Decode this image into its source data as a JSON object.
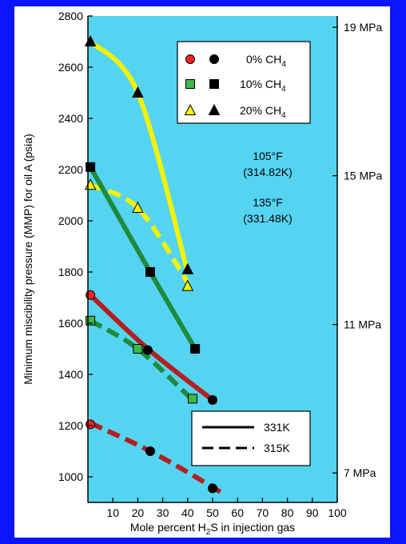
{
  "chart_data": {
    "type": "line",
    "title": "",
    "xlabel": "Mole percent H2S in injection gas",
    "xlabel_parts": [
      "Mole percent H",
      "2",
      "S in injection gas"
    ],
    "ylabel": "Minimum miscibility pressure (MMP) for oil A (psia)",
    "xlim": [
      0,
      100
    ],
    "ylim": [
      900,
      2800
    ],
    "x_ticks": [
      10,
      20,
      30,
      40,
      50,
      60,
      70,
      80,
      90,
      100
    ],
    "y_ticks": [
      1000,
      1200,
      1400,
      1600,
      1800,
      2000,
      2200,
      2400,
      2600,
      2800
    ],
    "y2_ticks": [
      {
        "label": "7 MPa",
        "psia": 1015
      },
      {
        "label": "11 MPa",
        "psia": 1595
      },
      {
        "label": "15 MPa",
        "psia": 2176
      },
      {
        "label": "19 MPa",
        "psia": 2756
      }
    ],
    "grid": false,
    "legend": {
      "position": "top-right",
      "entries": [
        {
          "label": "0% CH",
          "sub": "4",
          "marker": "circle",
          "open_color": "#ff2020"
        },
        {
          "label": "10% CH",
          "sub": "4",
          "marker": "square",
          "open_color": "#3db84a"
        },
        {
          "label": "20% CH",
          "sub": "4",
          "marker": "triangle",
          "open_color": "#f4f200"
        }
      ]
    },
    "line_legend": {
      "position": "bottom-right",
      "entries": [
        {
          "label": "331K",
          "style": "solid"
        },
        {
          "label": "315K",
          "style": "dashed"
        }
      ]
    },
    "annotations": [
      "105°F",
      "(314.82K)",
      "135°F",
      "(331.48K)"
    ],
    "curves": [
      {
        "group": "20% CH4",
        "style": "solid",
        "color": "#f4f200",
        "points": [
          [
            1,
            2700
          ],
          [
            20,
            2500
          ],
          [
            40,
            1800
          ]
        ]
      },
      {
        "group": "20% CH4",
        "style": "dashed",
        "color": "#f4f200",
        "points": [
          [
            1,
            2140
          ],
          [
            20,
            2050
          ],
          [
            40,
            1760
          ]
        ]
      },
      {
        "group": "10% CH4",
        "style": "solid",
        "color": "#1e8a3c",
        "points": [
          [
            1,
            2210
          ],
          [
            25,
            1800
          ],
          [
            43,
            1500
          ]
        ]
      },
      {
        "group": "10% CH4",
        "style": "dashed",
        "color": "#1e8a3c",
        "points": [
          [
            1,
            1610
          ],
          [
            20,
            1500
          ],
          [
            42,
            1300
          ]
        ]
      },
      {
        "group": "0% CH4",
        "style": "solid",
        "color": "#b41e1e",
        "points": [
          [
            1,
            1710
          ],
          [
            24,
            1500
          ],
          [
            50,
            1300
          ]
        ]
      },
      {
        "group": "0% CH4",
        "style": "dashed",
        "color": "#b41e1e",
        "points": [
          [
            1,
            1210
          ],
          [
            25,
            1100
          ],
          [
            50,
            960
          ],
          [
            54,
            930
          ]
        ]
      }
    ],
    "markers": [
      {
        "marker": "triangle",
        "filled": true,
        "x": 1,
        "y": 2700
      },
      {
        "marker": "triangle",
        "filled": true,
        "x": 20,
        "y": 2500
      },
      {
        "marker": "triangle",
        "filled": true,
        "x": 40,
        "y": 1810
      },
      {
        "marker": "triangle",
        "filled": false,
        "x": 1,
        "y": 2140
      },
      {
        "marker": "triangle",
        "filled": false,
        "x": 20,
        "y": 2050
      },
      {
        "marker": "triangle",
        "filled": false,
        "x": 40,
        "y": 1745
      },
      {
        "marker": "square",
        "filled": true,
        "x": 1,
        "y": 2210
      },
      {
        "marker": "square",
        "filled": true,
        "x": 25,
        "y": 1800
      },
      {
        "marker": "square",
        "filled": true,
        "x": 43,
        "y": 1500
      },
      {
        "marker": "square",
        "filled": false,
        "x": 1,
        "y": 1610
      },
      {
        "marker": "square",
        "filled": false,
        "x": 20,
        "y": 1500
      },
      {
        "marker": "square",
        "filled": false,
        "x": 42,
        "y": 1305
      },
      {
        "marker": "circle",
        "filled": false,
        "x": 1,
        "y": 1710
      },
      {
        "marker": "circle",
        "filled": true,
        "x": 24,
        "y": 1495
      },
      {
        "marker": "circle",
        "filled": true,
        "x": 50,
        "y": 1300
      },
      {
        "marker": "circle",
        "filled": false,
        "x": 1,
        "y": 1205
      },
      {
        "marker": "circle",
        "filled": true,
        "x": 25,
        "y": 1100
      },
      {
        "marker": "circle",
        "filled": true,
        "x": 50,
        "y": 955
      }
    ],
    "colors": {
      "background": "#0a14ff",
      "panel": "#55d4f2",
      "yellow": "#f4f200",
      "green": "#1e8a3c",
      "red": "#b41e1e"
    }
  }
}
